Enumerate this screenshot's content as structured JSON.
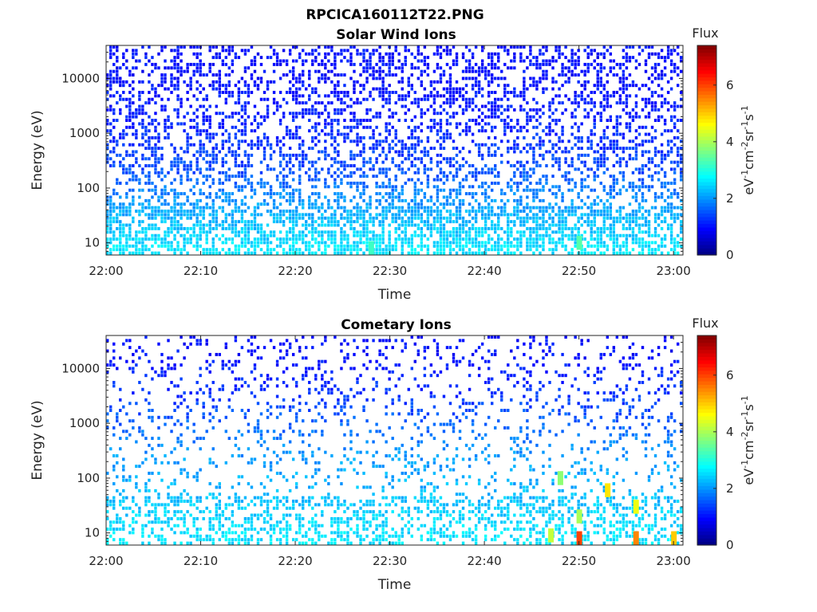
{
  "figure": {
    "title": "RPCICA160112T22.PNG"
  },
  "chart_data": [
    {
      "type": "heatmap",
      "title": "Solar Wind Ions",
      "xlabel": "Time",
      "ylabel": "Energy (eV)",
      "x_range": [
        "22:00",
        "23:01"
      ],
      "x_ticks": [
        "22:00",
        "22:10",
        "22:20",
        "22:30",
        "22:40",
        "22:50",
        "23:00"
      ],
      "y_scale": "log",
      "y_range": [
        6,
        40000
      ],
      "y_ticks": [
        10,
        100,
        1000,
        10000
      ],
      "y_tick_labels": [
        "10",
        "100",
        "1000",
        "10000"
      ],
      "colorbar": {
        "title": "Flux",
        "label_parts": [
          "eV",
          "-1",
          "cm",
          "-2",
          "sr",
          "-1",
          "s",
          "-1"
        ],
        "range": [
          0,
          7.4
        ],
        "ticks": [
          0,
          2,
          4,
          6
        ],
        "colormap": "jet"
      },
      "density_profile": [
        {
          "energy_eV": 8,
          "flux_level": 2.6
        },
        {
          "energy_eV": 25,
          "flux_level": 2.3
        },
        {
          "energy_eV": 60,
          "flux_level": 2.0
        },
        {
          "energy_eV": 200,
          "flux_level": 1.5
        },
        {
          "energy_eV": 1000,
          "flux_level": 1.2
        },
        {
          "energy_eV": 10000,
          "flux_level": 1.0
        }
      ],
      "hot_spots": [
        {
          "time": "22:50",
          "energy_eV": 10,
          "flux": 3.4
        },
        {
          "time": "22:28",
          "energy_eV": 8,
          "flux": 3.2
        }
      ]
    },
    {
      "type": "heatmap",
      "title": "Cometary Ions",
      "xlabel": "Time",
      "ylabel": "Energy (eV)",
      "x_range": [
        "22:00",
        "23:01"
      ],
      "x_ticks": [
        "22:00",
        "22:10",
        "22:20",
        "22:30",
        "22:40",
        "22:50",
        "23:00"
      ],
      "y_scale": "log",
      "y_range": [
        6,
        40000
      ],
      "y_ticks": [
        10,
        100,
        1000,
        10000
      ],
      "y_tick_labels": [
        "10",
        "100",
        "1000",
        "10000"
      ],
      "colorbar": {
        "title": "Flux",
        "label_parts": [
          "eV",
          "-1",
          "cm",
          "-2",
          "sr",
          "-1",
          "s",
          "-1"
        ],
        "range": [
          0,
          7.4
        ],
        "ticks": [
          0,
          2,
          4,
          6
        ],
        "colormap": "jet"
      },
      "density_profile": [
        {
          "energy_eV": 8,
          "flux_level": 2.6
        },
        {
          "energy_eV": 50,
          "flux_level": 2.3
        },
        {
          "energy_eV": 300,
          "flux_level": 2.0
        },
        {
          "energy_eV": 3000,
          "flux_level": 1.3
        },
        {
          "energy_eV": 20000,
          "flux_level": 1.0
        }
      ],
      "hot_spots": [
        {
          "time": "22:50",
          "energy_eV": 8,
          "flux": 6.0
        },
        {
          "time": "22:50",
          "energy_eV": 20,
          "flux": 4.0
        },
        {
          "time": "22:56",
          "energy_eV": 8,
          "flux": 5.5
        },
        {
          "time": "22:56",
          "energy_eV": 30,
          "flux": 4.5
        },
        {
          "time": "23:00",
          "energy_eV": 8,
          "flux": 5.0
        },
        {
          "time": "22:53",
          "energy_eV": 60,
          "flux": 4.8
        },
        {
          "time": "22:47",
          "energy_eV": 9,
          "flux": 4.2
        },
        {
          "time": "22:48",
          "energy_eV": 100,
          "flux": 3.8
        }
      ]
    }
  ]
}
